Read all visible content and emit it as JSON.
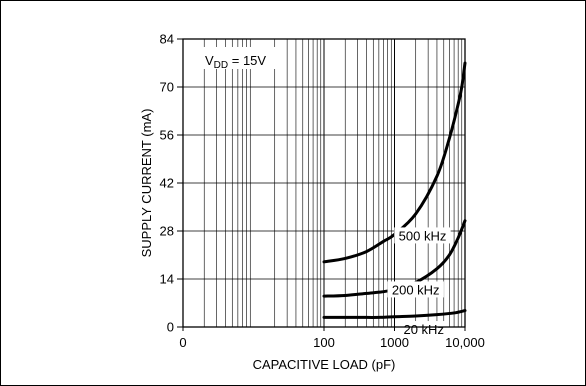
{
  "chart_data": {
    "type": "line",
    "xlabel": "CAPACITIVE LOAD (pF)",
    "ylabel": "SUPPLY CURRENT (mA)",
    "x_scale": "log",
    "xlim": [
      1,
      10000
    ],
    "ylim": [
      0,
      84
    ],
    "x_ticks": [
      {
        "value": 1,
        "label": "0"
      },
      {
        "value": 100,
        "label": "100"
      },
      {
        "value": 1000,
        "label": "1000"
      },
      {
        "value": 10000,
        "label": "10,000"
      }
    ],
    "y_ticks": [
      {
        "value": 0,
        "label": "0"
      },
      {
        "value": 14,
        "label": "14"
      },
      {
        "value": 28,
        "label": "28"
      },
      {
        "value": 42,
        "label": "42"
      },
      {
        "value": 56,
        "label": "56"
      },
      {
        "value": 70,
        "label": "70"
      },
      {
        "value": 84,
        "label": "84"
      }
    ],
    "grid": true,
    "annotation": {
      "main": "V",
      "sub": "DD",
      "rest": " = 15V"
    },
    "series": [
      {
        "name": "500 kHz",
        "x": [
          100,
          200,
          400,
          700,
          1000,
          2000,
          4000,
          6000,
          8000,
          9000,
          10000
        ],
        "y": [
          19,
          20,
          22,
          25,
          27,
          33,
          44,
          55,
          65,
          70,
          77
        ]
      },
      {
        "name": "200 kHz",
        "x": [
          100,
          200,
          400,
          700,
          1000,
          2000,
          4000,
          6000,
          8000,
          10000
        ],
        "y": [
          9,
          9.2,
          9.8,
          10.3,
          11,
          13,
          17,
          21,
          26,
          31
        ]
      },
      {
        "name": "20 kHz",
        "x": [
          100,
          300,
          600,
          1000,
          2000,
          4000,
          7000,
          10000
        ],
        "y": [
          2.8,
          2.8,
          2.8,
          3.0,
          3.2,
          3.6,
          4.1,
          4.8
        ]
      }
    ]
  }
}
